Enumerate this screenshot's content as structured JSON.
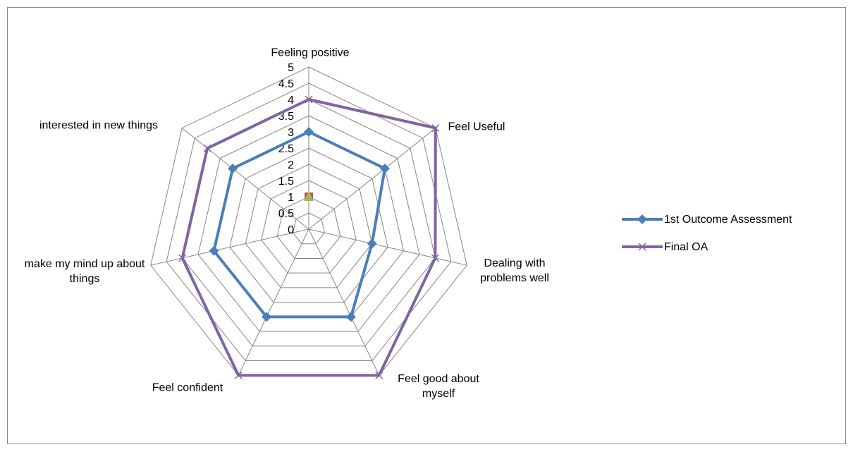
{
  "chart_data": {
    "type": "radar",
    "categories": [
      "Feeling positive",
      "Feel Useful",
      "Dealing with problems well",
      "Feel good about myself",
      "Feel confident",
      "make my mind up about things",
      "interested in new things"
    ],
    "series": [
      {
        "name": "1st Outcome Assessment",
        "color": "#4a7ebb",
        "marker": "diamond",
        "values": [
          3,
          3,
          2,
          3,
          3,
          3,
          3
        ]
      },
      {
        "name": "Final OA",
        "color": "#8064a2",
        "marker": "x",
        "values": [
          4,
          5,
          4,
          5,
          5,
          4,
          4
        ]
      },
      {
        "color": "#c0504d",
        "marker": "square",
        "values": [
          1,
          null,
          null,
          null,
          null,
          null,
          null
        ]
      },
      {
        "color": "#9bbb59",
        "marker": "triangle",
        "values": [
          1,
          null,
          null,
          null,
          null,
          null,
          null
        ]
      }
    ],
    "ylim": [
      0,
      5
    ],
    "yticks": [
      0,
      0.5,
      1,
      1.5,
      2,
      2.5,
      3,
      3.5,
      4,
      4.5,
      5
    ],
    "grid": true,
    "legend": "right"
  }
}
